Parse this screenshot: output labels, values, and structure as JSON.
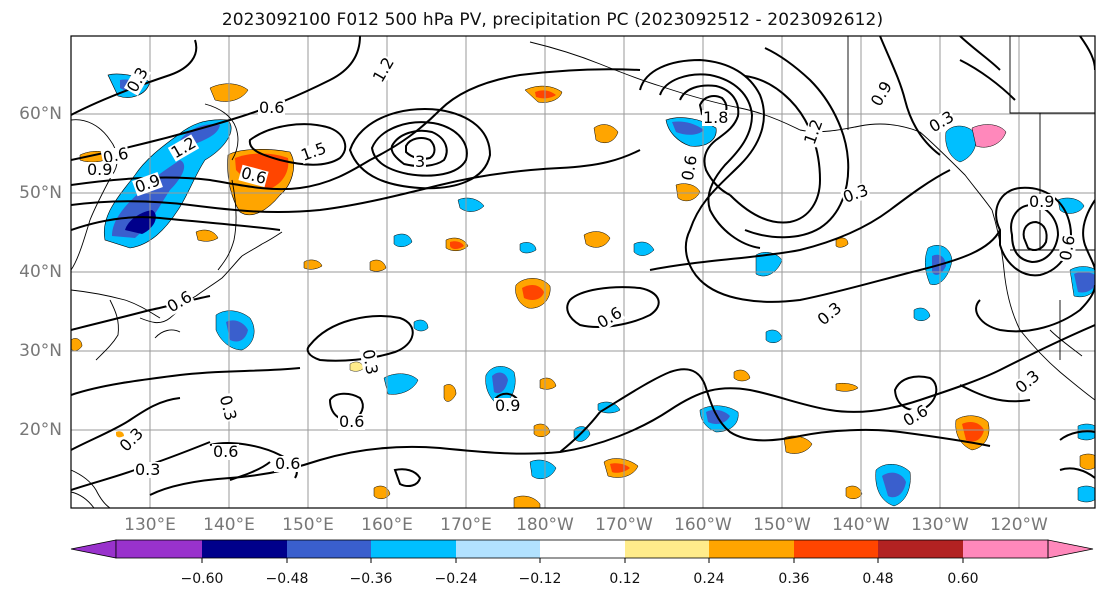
{
  "title": "2023092100 F012 500 hPa PV, precipitation PC (2023092512 - 2023092612)",
  "lat_labels": [
    "60°N",
    "50°N",
    "40°N",
    "30°N",
    "20°N"
  ],
  "lon_labels": [
    "130°E",
    "140°E",
    "150°E",
    "160°E",
    "170°E",
    "180°W",
    "170°W",
    "160°W",
    "150°W",
    "140°W",
    "130°W",
    "120°W"
  ],
  "contour_labels": [
    "0.3",
    "1.2",
    "0.6",
    "0.6",
    "1.5",
    "0.9",
    "0.9",
    "0.6",
    "1.2",
    "3",
    "1.8",
    "1.2",
    "0.9",
    "0.3",
    "0.6",
    "0.9",
    "0.3",
    "0.6",
    "0.3",
    "0.6",
    "0.3",
    "0.6",
    "0.3",
    "0.3",
    "0.3",
    "0.6",
    "0.6",
    "0.6",
    "0.9",
    "0.6",
    "0.3"
  ],
  "colorbar": {
    "ticks": [
      "−0.60",
      "−0.48",
      "−0.36",
      "−0.24",
      "−0.12",
      "0.12",
      "0.24",
      "0.36",
      "0.48",
      "0.60"
    ],
    "colors": [
      "#9932cc",
      "#00008b",
      "#3a5fcd",
      "#00bfff",
      "#b2e2ff",
      "#ffffff",
      "#ffec8b",
      "#ffa500",
      "#ff4500",
      "#b22222",
      "#ff88bb"
    ]
  },
  "legend_colors": {
    "pos_low": "#ffec8b",
    "pos_mid": "#ffa500",
    "pos_high": "#ff4500",
    "neg_low": "#b2e2ff",
    "neg_mid": "#00bfff",
    "neg_high": "#3a5fcd",
    "neg_max": "#00008b"
  }
}
